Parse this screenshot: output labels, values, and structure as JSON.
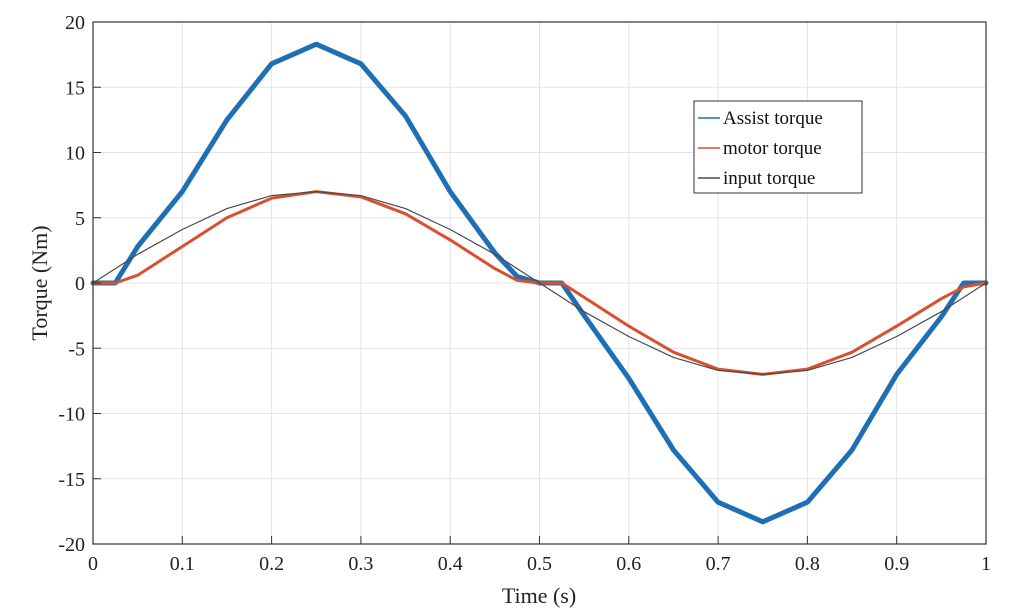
{
  "chart_data": {
    "type": "line",
    "xlabel": "Time (s)",
    "ylabel": "Torque (Nm)",
    "xlim": [
      0,
      1
    ],
    "ylim": [
      -20,
      20
    ],
    "xticks": [
      0,
      0.1,
      0.2,
      0.3,
      0.4,
      0.5,
      0.6,
      0.7,
      0.8,
      0.9,
      1
    ],
    "xtick_labels": [
      "0",
      "0.1",
      "0.2",
      "0.3",
      "0.4",
      "0.5",
      "0.6",
      "0.7",
      "0.8",
      "0.9",
      "1"
    ],
    "yticks": [
      20,
      15,
      10,
      5,
      0,
      -5,
      -10,
      -15,
      -20
    ],
    "ytick_labels": [
      "20",
      "15",
      "10",
      "5",
      "0",
      "-5",
      "-10",
      "-15",
      "-20"
    ],
    "grid": true,
    "legend_position": "top-right",
    "series": [
      {
        "name": "Assist torque",
        "color": "#1f6fb5",
        "x": [
          0,
          0.025,
          0.05,
          0.1,
          0.15,
          0.2,
          0.25,
          0.3,
          0.35,
          0.4,
          0.45,
          0.475,
          0.5,
          0.525,
          0.55,
          0.6,
          0.65,
          0.7,
          0.75,
          0.8,
          0.85,
          0.9,
          0.95,
          0.975,
          1
        ],
        "y": [
          0,
          0,
          2.8,
          7.0,
          12.5,
          16.8,
          18.3,
          16.8,
          12.8,
          7.0,
          2.3,
          0.5,
          0,
          0,
          -2.5,
          -7.3,
          -12.8,
          -16.8,
          -18.3,
          -16.8,
          -12.8,
          -7.0,
          -2.6,
          0,
          0
        ]
      },
      {
        "name": "motor torque",
        "color": "#d9512c",
        "x": [
          0,
          0.025,
          0.05,
          0.1,
          0.15,
          0.2,
          0.25,
          0.3,
          0.35,
          0.4,
          0.45,
          0.475,
          0.5,
          0.525,
          0.55,
          0.6,
          0.65,
          0.7,
          0.75,
          0.8,
          0.85,
          0.9,
          0.95,
          0.975,
          1
        ],
        "y": [
          0,
          0,
          0.6,
          2.8,
          5.0,
          6.5,
          7.0,
          6.6,
          5.3,
          3.3,
          1.1,
          0.2,
          0,
          0,
          -1.1,
          -3.3,
          -5.3,
          -6.6,
          -7.0,
          -6.6,
          -5.3,
          -3.3,
          -1.2,
          -0.3,
          0
        ]
      },
      {
        "name": "input torque",
        "color": "#4a4a4a",
        "x": [
          0,
          0.05,
          0.1,
          0.15,
          0.2,
          0.25,
          0.3,
          0.35,
          0.4,
          0.45,
          0.5,
          0.55,
          0.6,
          0.65,
          0.7,
          0.75,
          0.8,
          0.85,
          0.9,
          0.95,
          1
        ],
        "y": [
          0,
          2.2,
          4.1,
          5.7,
          6.7,
          7.0,
          6.7,
          5.7,
          4.1,
          2.2,
          0,
          -2.2,
          -4.1,
          -5.7,
          -6.7,
          -7.0,
          -6.7,
          -5.7,
          -4.1,
          -2.2,
          0
        ]
      }
    ]
  }
}
